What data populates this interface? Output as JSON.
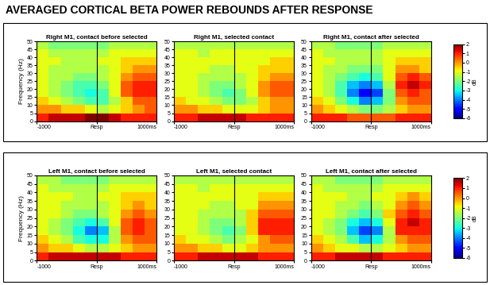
{
  "title": "AVERAGED CORTICAL BETA POWER REBOUNDS AFTER RESPONSE",
  "chart_data": [
    {
      "type": "heatmap",
      "title": "Right M1, contact before selected",
      "ylabel": "Frequency (Hz)",
      "color": "jet",
      "x": [
        -900,
        -700,
        -500,
        -300,
        -100,
        100,
        300,
        500,
        700,
        900
      ],
      "y": [
        2.5,
        7.5,
        12.5,
        17.5,
        22.5,
        27.5,
        32.5,
        37.5,
        42.5,
        47.5
      ],
      "xlim": [
        -1000,
        1000
      ],
      "ylim": [
        0,
        50
      ],
      "xticks": [
        -1000,
        {
          "value": 0,
          "label": "Resp"
        },
        {
          "value": 1000,
          "label": "1000ms"
        }
      ],
      "yticks": [
        0,
        5,
        10,
        15,
        20,
        25,
        30,
        35,
        40,
        45,
        50
      ],
      "response_line": 0,
      "values": [
        [
          1,
          1.5,
          1.5,
          1.5,
          2,
          2,
          1.5,
          1,
          1,
          1
        ],
        [
          0,
          0,
          -0.5,
          -0.5,
          -1,
          -1.5,
          -1,
          -0.5,
          0,
          0.5
        ],
        [
          -0.5,
          -1,
          -1.5,
          -2,
          -2.5,
          -2.5,
          -1.5,
          -0.5,
          0.5,
          0.5
        ],
        [
          -1,
          -1.5,
          -2,
          -2.5,
          -3,
          -2.5,
          -1,
          0.5,
          1,
          1
        ],
        [
          -1,
          -1.5,
          -2,
          -2.5,
          -2.5,
          -2,
          -1,
          0.5,
          1,
          1
        ],
        [
          -1,
          -1.5,
          -1.5,
          -2,
          -2,
          -1.5,
          -1,
          0,
          0.5,
          0.5
        ],
        [
          -1,
          -1.5,
          -1.5,
          -1.5,
          -1.5,
          -1.5,
          -1,
          -0.5,
          0,
          0
        ],
        [
          -1,
          -1,
          -1.5,
          -1.5,
          -1.5,
          -1,
          -1,
          -0.5,
          -0.5,
          -0.5
        ],
        [
          -1,
          -1.5,
          -1.5,
          -1.5,
          -1.5,
          -1.5,
          -1,
          -1,
          -1,
          -1
        ],
        [
          -1.5,
          -2,
          -2,
          -2,
          -2,
          -2,
          -1.5,
          -1.5,
          -1.5,
          -1.5
        ]
      ]
    },
    {
      "type": "heatmap",
      "title": "Right M1, selected contact",
      "color": "jet",
      "x": [
        -900,
        -700,
        -500,
        -300,
        -100,
        100,
        300,
        500,
        700,
        900
      ],
      "y": [
        2.5,
        7.5,
        12.5,
        17.5,
        22.5,
        27.5,
        32.5,
        37.5,
        42.5,
        47.5
      ],
      "xlim": [
        -1000,
        1000
      ],
      "ylim": [
        0,
        50
      ],
      "xticks": [
        -1000,
        {
          "value": 0,
          "label": "Resp"
        },
        {
          "value": 1000,
          "label": "1000ms"
        }
      ],
      "yticks": [
        0,
        5,
        10,
        15,
        20,
        25,
        30,
        35,
        40,
        45,
        50
      ],
      "response_line": 0,
      "values": [
        [
          1,
          1,
          1.5,
          1.5,
          1.5,
          1.5,
          1,
          1,
          1,
          1
        ],
        [
          0,
          0,
          -0.5,
          -0.5,
          -1,
          -1,
          -1,
          -0.5,
          0,
          0
        ],
        [
          -0.5,
          -1,
          -1,
          -1.5,
          -2,
          -2,
          -1.5,
          -0.5,
          0,
          0
        ],
        [
          -1,
          -1,
          -1.5,
          -2,
          -2.5,
          -2,
          -1,
          0,
          0.5,
          0.5
        ],
        [
          -1,
          -1,
          -1.5,
          -2,
          -2,
          -1.5,
          -1,
          0,
          0.5,
          0.5
        ],
        [
          -1,
          -1,
          -1.5,
          -1.5,
          -1.5,
          -1.5,
          -1,
          -0.5,
          0,
          0
        ],
        [
          -1,
          -1,
          -1,
          -1.5,
          -1.5,
          -1,
          -1,
          -0.5,
          -0.5,
          -0.5
        ],
        [
          -1,
          -1,
          -1,
          -1,
          -1,
          -1,
          -1,
          -1,
          -0.5,
          -0.5
        ],
        [
          -1,
          -1,
          -1.5,
          -1,
          -1,
          -1,
          -1,
          -1,
          -1,
          -1
        ],
        [
          -1.5,
          -1.5,
          -1.5,
          -1.5,
          -1.5,
          -1.5,
          -1.5,
          -1.5,
          -1.5,
          -1.5
        ]
      ]
    },
    {
      "type": "heatmap",
      "title": "Right M1, contact after selected",
      "color": "jet",
      "x": [
        -900,
        -700,
        -500,
        -300,
        -100,
        100,
        300,
        500,
        700,
        900
      ],
      "y": [
        2.5,
        7.5,
        12.5,
        17.5,
        22.5,
        27.5,
        32.5,
        37.5,
        42.5,
        47.5
      ],
      "xlim": [
        -1000,
        1000
      ],
      "ylim": [
        0,
        50
      ],
      "xticks": [
        -1000,
        {
          "value": 0,
          "label": "Resp"
        },
        {
          "value": 1000,
          "label": "1000ms"
        }
      ],
      "yticks": [
        0,
        5,
        10,
        15,
        20,
        25,
        30,
        35,
        40,
        45,
        50
      ],
      "response_line": 0,
      "colorbar": {
        "range": [
          -6,
          2
        ],
        "ticks": [
          -6,
          -5,
          -4,
          -3,
          -2,
          -1,
          0,
          1,
          2
        ],
        "label": "dB"
      },
      "values": [
        [
          1,
          1,
          1,
          0.5,
          0.5,
          0.5,
          0.5,
          1,
          1,
          1
        ],
        [
          0,
          -0.5,
          -1,
          -1.5,
          -2,
          -2,
          -1.5,
          -0.5,
          0,
          0
        ],
        [
          -0.5,
          -1,
          -2,
          -3,
          -4,
          -3.5,
          -2,
          0,
          0.5,
          0.5
        ],
        [
          -1,
          -1.5,
          -2.5,
          -4,
          -5,
          -4.5,
          -2,
          0.5,
          1,
          0.5
        ],
        [
          -1,
          -1.5,
          -2.5,
          -3.5,
          -4,
          -3.5,
          -1.5,
          1,
          1.5,
          1
        ],
        [
          -1,
          -1.5,
          -2,
          -2.5,
          -3,
          -2.5,
          -1,
          0.5,
          1,
          0.5
        ],
        [
          -1,
          -1.5,
          -1.5,
          -2,
          -2,
          -2,
          -1,
          0,
          0,
          -0.5
        ],
        [
          -1,
          -1,
          -1.5,
          -1.5,
          -1.5,
          -1.5,
          -1,
          -0.5,
          -0.5,
          -0.5
        ],
        [
          -1,
          -1.5,
          -1.5,
          -1.5,
          -1.5,
          -1.5,
          -1,
          -1,
          -1,
          -1
        ],
        [
          -1.5,
          -1.5,
          -2,
          -2,
          -2,
          -2,
          -1.5,
          -1.5,
          -1.5,
          -1.5
        ]
      ]
    },
    {
      "type": "heatmap",
      "title": "Left M1, contact before selected",
      "ylabel": "Frequency (Hz)",
      "color": "jet",
      "x": [
        -900,
        -700,
        -500,
        -300,
        -100,
        100,
        300,
        500,
        700,
        900
      ],
      "y": [
        2.5,
        7.5,
        12.5,
        17.5,
        22.5,
        27.5,
        32.5,
        37.5,
        42.5,
        47.5
      ],
      "xlim": [
        -1000,
        1000
      ],
      "ylim": [
        0,
        50
      ],
      "xticks": [
        -1000,
        {
          "value": 0,
          "label": "Resp"
        },
        {
          "value": 1000,
          "label": "1000ms"
        }
      ],
      "yticks": [
        0,
        5,
        10,
        15,
        20,
        25,
        30,
        35,
        40,
        45,
        50
      ],
      "response_line": 0,
      "values": [
        [
          1,
          1.5,
          1.5,
          1.5,
          1.5,
          1.5,
          1.5,
          1,
          1,
          1
        ],
        [
          0,
          -0.5,
          -0.5,
          -1,
          -1.5,
          -1.5,
          -1,
          -0.5,
          0,
          0
        ],
        [
          -0.5,
          -1,
          -1.5,
          -2.5,
          -3,
          -3,
          -1.5,
          0,
          0.5,
          0.5
        ],
        [
          -1,
          -1.5,
          -2,
          -3,
          -4,
          -3.5,
          -1.5,
          0.5,
          1,
          0.5
        ],
        [
          -1,
          -1.5,
          -2,
          -2.5,
          -3,
          -2.5,
          -1,
          0.5,
          1,
          0.5
        ],
        [
          -1,
          -1,
          -1.5,
          -2,
          -2,
          -1.5,
          -1,
          0,
          0.5,
          0
        ],
        [
          -1,
          -1,
          -1.5,
          -1.5,
          -1.5,
          -1.5,
          -1,
          -0.5,
          0,
          -0.5
        ],
        [
          -1,
          -1,
          -1,
          -1.5,
          -1.5,
          -1,
          -1,
          -0.5,
          -0.5,
          -0.5
        ],
        [
          -1,
          -1.5,
          -1.5,
          -1.5,
          -1.5,
          -1.5,
          -1,
          -1,
          -1,
          -1
        ],
        [
          -1.5,
          -1.5,
          -2,
          -2,
          -2,
          -2,
          -1.5,
          -1.5,
          -1.5,
          -1.5
        ]
      ]
    },
    {
      "type": "heatmap",
      "title": "Left M1, selected contact",
      "color": "jet",
      "x": [
        -900,
        -700,
        -500,
        -300,
        -100,
        100,
        300,
        500,
        700,
        900
      ],
      "y": [
        2.5,
        7.5,
        12.5,
        17.5,
        22.5,
        27.5,
        32.5,
        37.5,
        42.5,
        47.5
      ],
      "xlim": [
        -1000,
        1000
      ],
      "ylim": [
        0,
        50
      ],
      "xticks": [
        -1000,
        {
          "value": 0,
          "label": "Resp"
        },
        {
          "value": 1000,
          "label": "1000ms"
        }
      ],
      "yticks": [
        0,
        5,
        10,
        15,
        20,
        25,
        30,
        35,
        40,
        45,
        50
      ],
      "response_line": 0,
      "values": [
        [
          1,
          1,
          1.5,
          1.5,
          1.5,
          1.5,
          1.5,
          1,
          1,
          1
        ],
        [
          0,
          0,
          -0.5,
          -0.5,
          -1,
          -1,
          -0.5,
          0,
          0,
          0
        ],
        [
          -0.5,
          -1,
          -1,
          -1.5,
          -2,
          -1.5,
          -1,
          0,
          0.5,
          0.5
        ],
        [
          -1,
          -1,
          -1.5,
          -2,
          -2.5,
          -2,
          -0.5,
          1,
          1,
          1
        ],
        [
          -1,
          -1,
          -1.5,
          -2,
          -2,
          -1.5,
          -0.5,
          1,
          1,
          1
        ],
        [
          -1,
          -1,
          -1.5,
          -1.5,
          -1.5,
          -1.5,
          -0.5,
          0.5,
          0.5,
          0.5
        ],
        [
          -1,
          -1,
          -1,
          -1.5,
          -1.5,
          -1,
          -1,
          0,
          0,
          0
        ],
        [
          -1,
          -1,
          -1,
          -1,
          -1,
          -1,
          -1,
          -0.5,
          -0.5,
          -0.5
        ],
        [
          -1,
          -1,
          -1.5,
          -1,
          -1,
          -1,
          -1,
          -1,
          -1,
          -1
        ],
        [
          -1.5,
          -1.5,
          -1.5,
          -1.5,
          -1.5,
          -1.5,
          -1.5,
          -1.5,
          -1.5,
          -1.5
        ]
      ]
    },
    {
      "type": "heatmap",
      "title": "Left M1, contact after selected",
      "color": "jet",
      "x": [
        -900,
        -700,
        -500,
        -300,
        -100,
        100,
        300,
        500,
        700,
        900
      ],
      "y": [
        2.5,
        7.5,
        12.5,
        17.5,
        22.5,
        27.5,
        32.5,
        37.5,
        42.5,
        47.5
      ],
      "xlim": [
        -1000,
        1000
      ],
      "ylim": [
        0,
        50
      ],
      "xticks": [
        -1000,
        {
          "value": 0,
          "label": "Resp"
        },
        {
          "value": 1000,
          "label": "1000ms"
        }
      ],
      "yticks": [
        0,
        5,
        10,
        15,
        20,
        25,
        30,
        35,
        40,
        45,
        50
      ],
      "response_line": 0,
      "colorbar": {
        "range": [
          -6,
          2
        ],
        "ticks": [
          -6,
          -5,
          -4,
          -3,
          -2,
          -1,
          0,
          1,
          2
        ],
        "label": "dB"
      },
      "values": [
        [
          1,
          1,
          1.5,
          1.5,
          1.5,
          1.5,
          1,
          1,
          1,
          1
        ],
        [
          0,
          -0.5,
          -1,
          -1,
          -1.5,
          -1.5,
          -1,
          -0.5,
          0,
          0
        ],
        [
          -0.5,
          -1,
          -1.5,
          -2.5,
          -3.5,
          -3,
          -1.5,
          0,
          0.5,
          0.5
        ],
        [
          -1,
          -1.5,
          -2,
          -3.5,
          -4.5,
          -4,
          -1.5,
          1,
          1,
          1
        ],
        [
          -1,
          -1.5,
          -2,
          -3,
          -3.5,
          -3,
          -1,
          1,
          1.5,
          1
        ],
        [
          -1,
          -1,
          -1.5,
          -2,
          -2.5,
          -2,
          -0.5,
          0.5,
          1,
          0.5
        ],
        [
          -1,
          -1,
          -1.5,
          -1.5,
          -2,
          -1.5,
          -1,
          0,
          0.5,
          0
        ],
        [
          -1,
          -1,
          -1,
          -1.5,
          -1.5,
          -1,
          -1,
          -0.5,
          0,
          -0.5
        ],
        [
          -1,
          -1.5,
          -1.5,
          -1.5,
          -1.5,
          -1.5,
          -1,
          -1,
          -1,
          -1
        ],
        [
          -1.5,
          -1.5,
          -2,
          -2,
          -2,
          -2,
          -1.5,
          -1.5,
          -1.5,
          -1.5
        ]
      ]
    }
  ]
}
